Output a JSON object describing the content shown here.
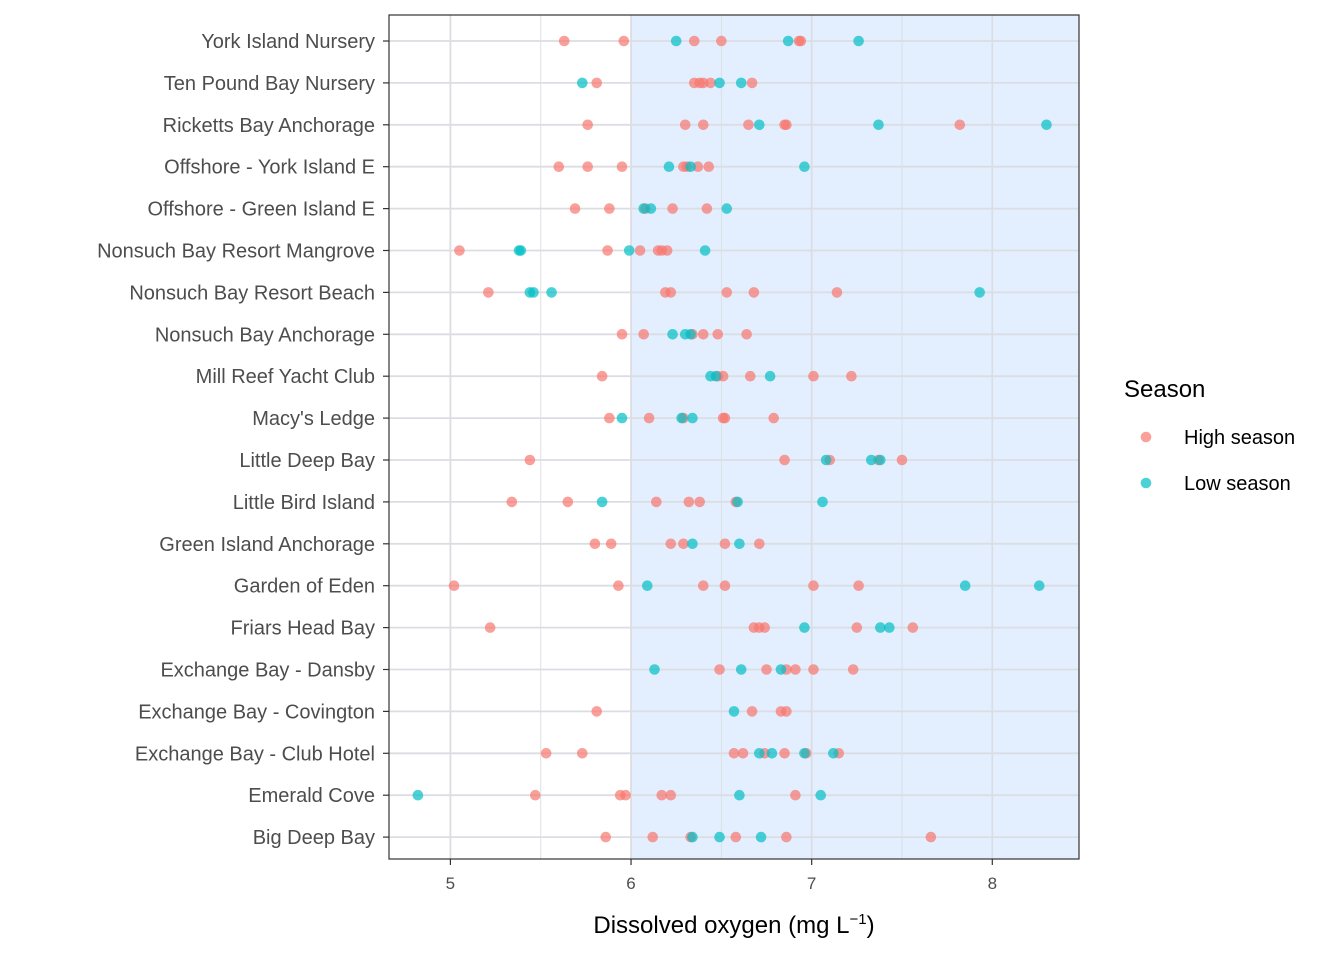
{
  "chart_data": {
    "type": "scatter",
    "xlabel": "Dissolved oxygen (mg L",
    "xlabel_superscript": "−1",
    "xlabel_suffix": ")",
    "xlim": [
      4.66,
      8.48
    ],
    "xticks": [
      5,
      6,
      7,
      8
    ],
    "shaded_region": {
      "from": 6,
      "to": 8.48,
      "color": "#e3efff"
    },
    "grid": true,
    "legend": {
      "title": "Season",
      "placement": "right",
      "entries": [
        {
          "label": "High season",
          "color": "#f8766d"
        },
        {
          "label": "Low season",
          "color": "#00bfc4"
        }
      ]
    },
    "categories": [
      "York Island Nursery",
      "Ten Pound Bay Nursery",
      "Ricketts Bay Anchorage",
      "Offshore - York Island E",
      "Offshore - Green Island E",
      "Nonsuch Bay Resort Mangrove",
      "Nonsuch Bay Resort Beach",
      "Nonsuch Bay Anchorage",
      "Mill Reef Yacht Club",
      "Macy's Ledge",
      "Little Deep Bay",
      "Little Bird Island",
      "Green Island Anchorage",
      "Garden of Eden",
      "Friars Head Bay",
      "Exchange Bay - Dansby",
      "Exchange Bay - Covington",
      "Exchange Bay - Club Hotel",
      "Emerald Cove",
      "Big Deep Bay"
    ],
    "series": [
      {
        "name": "High season",
        "color": "#f8766d",
        "points": [
          [
            "York Island Nursery",
            5.63
          ],
          [
            "York Island Nursery",
            5.96
          ],
          [
            "York Island Nursery",
            6.35
          ],
          [
            "York Island Nursery",
            6.5
          ],
          [
            "York Island Nursery",
            6.93
          ],
          [
            "York Island Nursery",
            6.94
          ],
          [
            "Ten Pound Bay Nursery",
            5.81
          ],
          [
            "Ten Pound Bay Nursery",
            6.35
          ],
          [
            "Ten Pound Bay Nursery",
            6.38
          ],
          [
            "Ten Pound Bay Nursery",
            6.4
          ],
          [
            "Ten Pound Bay Nursery",
            6.44
          ],
          [
            "Ten Pound Bay Nursery",
            6.67
          ],
          [
            "Ricketts Bay Anchorage",
            5.76
          ],
          [
            "Ricketts Bay Anchorage",
            6.3
          ],
          [
            "Ricketts Bay Anchorage",
            6.4
          ],
          [
            "Ricketts Bay Anchorage",
            6.65
          ],
          [
            "Ricketts Bay Anchorage",
            6.85
          ],
          [
            "Ricketts Bay Anchorage",
            6.86
          ],
          [
            "Ricketts Bay Anchorage",
            7.82
          ],
          [
            "Offshore - York Island E",
            5.6
          ],
          [
            "Offshore - York Island E",
            5.76
          ],
          [
            "Offshore - York Island E",
            5.95
          ],
          [
            "Offshore - York Island E",
            6.29
          ],
          [
            "Offshore - York Island E",
            6.31
          ],
          [
            "Offshore - York Island E",
            6.37
          ],
          [
            "Offshore - York Island E",
            6.43
          ],
          [
            "Offshore - Green Island E",
            5.69
          ],
          [
            "Offshore - Green Island E",
            5.88
          ],
          [
            "Offshore - Green Island E",
            6.08
          ],
          [
            "Offshore - Green Island E",
            6.23
          ],
          [
            "Offshore - Green Island E",
            6.42
          ],
          [
            "Nonsuch Bay Resort Mangrove",
            5.05
          ],
          [
            "Nonsuch Bay Resort Mangrove",
            5.87
          ],
          [
            "Nonsuch Bay Resort Mangrove",
            6.05
          ],
          [
            "Nonsuch Bay Resort Mangrove",
            6.15
          ],
          [
            "Nonsuch Bay Resort Mangrove",
            6.17
          ],
          [
            "Nonsuch Bay Resort Mangrove",
            6.2
          ],
          [
            "Nonsuch Bay Resort Beach",
            5.21
          ],
          [
            "Nonsuch Bay Resort Beach",
            6.19
          ],
          [
            "Nonsuch Bay Resort Beach",
            6.22
          ],
          [
            "Nonsuch Bay Resort Beach",
            6.53
          ],
          [
            "Nonsuch Bay Resort Beach",
            6.68
          ],
          [
            "Nonsuch Bay Resort Beach",
            7.14
          ],
          [
            "Nonsuch Bay Anchorage",
            5.95
          ],
          [
            "Nonsuch Bay Anchorage",
            6.07
          ],
          [
            "Nonsuch Bay Anchorage",
            6.34
          ],
          [
            "Nonsuch Bay Anchorage",
            6.4
          ],
          [
            "Nonsuch Bay Anchorage",
            6.48
          ],
          [
            "Nonsuch Bay Anchorage",
            6.64
          ],
          [
            "Mill Reef Yacht Club",
            5.84
          ],
          [
            "Mill Reef Yacht Club",
            6.48
          ],
          [
            "Mill Reef Yacht Club",
            6.51
          ],
          [
            "Mill Reef Yacht Club",
            6.66
          ],
          [
            "Mill Reef Yacht Club",
            7.01
          ],
          [
            "Mill Reef Yacht Club",
            7.22
          ],
          [
            "Macy's Ledge",
            5.88
          ],
          [
            "Macy's Ledge",
            6.1
          ],
          [
            "Macy's Ledge",
            6.29
          ],
          [
            "Macy's Ledge",
            6.51
          ],
          [
            "Macy's Ledge",
            6.52
          ],
          [
            "Macy's Ledge",
            6.79
          ],
          [
            "Little Deep Bay",
            5.44
          ],
          [
            "Little Deep Bay",
            6.85
          ],
          [
            "Little Deep Bay",
            7.1
          ],
          [
            "Little Deep Bay",
            7.37
          ],
          [
            "Little Deep Bay",
            7.5
          ],
          [
            "Little Bird Island",
            5.34
          ],
          [
            "Little Bird Island",
            5.65
          ],
          [
            "Little Bird Island",
            6.14
          ],
          [
            "Little Bird Island",
            6.32
          ],
          [
            "Little Bird Island",
            6.38
          ],
          [
            "Little Bird Island",
            6.58
          ],
          [
            "Green Island Anchorage",
            5.8
          ],
          [
            "Green Island Anchorage",
            5.89
          ],
          [
            "Green Island Anchorage",
            6.22
          ],
          [
            "Green Island Anchorage",
            6.29
          ],
          [
            "Green Island Anchorage",
            6.52
          ],
          [
            "Green Island Anchorage",
            6.71
          ],
          [
            "Garden of Eden",
            5.02
          ],
          [
            "Garden of Eden",
            5.93
          ],
          [
            "Garden of Eden",
            6.4
          ],
          [
            "Garden of Eden",
            6.52
          ],
          [
            "Garden of Eden",
            7.01
          ],
          [
            "Garden of Eden",
            7.26
          ],
          [
            "Friars Head Bay",
            5.22
          ],
          [
            "Friars Head Bay",
            6.68
          ],
          [
            "Friars Head Bay",
            6.71
          ],
          [
            "Friars Head Bay",
            6.74
          ],
          [
            "Friars Head Bay",
            7.25
          ],
          [
            "Friars Head Bay",
            7.56
          ],
          [
            "Exchange Bay - Dansby",
            6.49
          ],
          [
            "Exchange Bay - Dansby",
            6.75
          ],
          [
            "Exchange Bay - Dansby",
            6.86
          ],
          [
            "Exchange Bay - Dansby",
            6.91
          ],
          [
            "Exchange Bay - Dansby",
            7.01
          ],
          [
            "Exchange Bay - Dansby",
            7.23
          ],
          [
            "Exchange Bay - Covington",
            5.81
          ],
          [
            "Exchange Bay - Covington",
            6.67
          ],
          [
            "Exchange Bay - Covington",
            6.83
          ],
          [
            "Exchange Bay - Covington",
            6.86
          ],
          [
            "Exchange Bay - Club Hotel",
            5.53
          ],
          [
            "Exchange Bay - Club Hotel",
            5.73
          ],
          [
            "Exchange Bay - Club Hotel",
            6.57
          ],
          [
            "Exchange Bay - Club Hotel",
            6.62
          ],
          [
            "Exchange Bay - Club Hotel",
            6.74
          ],
          [
            "Exchange Bay - Club Hotel",
            6.85
          ],
          [
            "Exchange Bay - Club Hotel",
            6.97
          ],
          [
            "Exchange Bay - Club Hotel",
            7.15
          ],
          [
            "Emerald Cove",
            5.47
          ],
          [
            "Emerald Cove",
            5.94
          ],
          [
            "Emerald Cove",
            5.97
          ],
          [
            "Emerald Cove",
            6.17
          ],
          [
            "Emerald Cove",
            6.22
          ],
          [
            "Emerald Cove",
            6.91
          ],
          [
            "Big Deep Bay",
            5.86
          ],
          [
            "Big Deep Bay",
            6.12
          ],
          [
            "Big Deep Bay",
            6.33
          ],
          [
            "Big Deep Bay",
            6.58
          ],
          [
            "Big Deep Bay",
            6.86
          ],
          [
            "Big Deep Bay",
            7.66
          ]
        ]
      },
      {
        "name": "Low season",
        "color": "#00bfc4",
        "points": [
          [
            "York Island Nursery",
            6.25
          ],
          [
            "York Island Nursery",
            6.87
          ],
          [
            "York Island Nursery",
            7.26
          ],
          [
            "Ten Pound Bay Nursery",
            5.73
          ],
          [
            "Ten Pound Bay Nursery",
            6.49
          ],
          [
            "Ten Pound Bay Nursery",
            6.61
          ],
          [
            "Ricketts Bay Anchorage",
            6.71
          ],
          [
            "Ricketts Bay Anchorage",
            7.37
          ],
          [
            "Ricketts Bay Anchorage",
            8.3
          ],
          [
            "Offshore - York Island E",
            6.21
          ],
          [
            "Offshore - York Island E",
            6.33
          ],
          [
            "Offshore - York Island E",
            6.96
          ],
          [
            "Offshore - Green Island E",
            6.07
          ],
          [
            "Offshore - Green Island E",
            6.11
          ],
          [
            "Offshore - Green Island E",
            6.53
          ],
          [
            "Nonsuch Bay Resort Mangrove",
            5.38
          ],
          [
            "Nonsuch Bay Resort Mangrove",
            5.39
          ],
          [
            "Nonsuch Bay Resort Mangrove",
            5.99
          ],
          [
            "Nonsuch Bay Resort Mangrove",
            6.41
          ],
          [
            "Nonsuch Bay Resort Beach",
            5.44
          ],
          [
            "Nonsuch Bay Resort Beach",
            5.46
          ],
          [
            "Nonsuch Bay Resort Beach",
            5.56
          ],
          [
            "Nonsuch Bay Resort Beach",
            7.93
          ],
          [
            "Nonsuch Bay Anchorage",
            6.23
          ],
          [
            "Nonsuch Bay Anchorage",
            6.3
          ],
          [
            "Nonsuch Bay Anchorage",
            6.33
          ],
          [
            "Mill Reef Yacht Club",
            6.44
          ],
          [
            "Mill Reef Yacht Club",
            6.47
          ],
          [
            "Mill Reef Yacht Club",
            6.77
          ],
          [
            "Macy's Ledge",
            5.95
          ],
          [
            "Macy's Ledge",
            6.28
          ],
          [
            "Macy's Ledge",
            6.34
          ],
          [
            "Little Deep Bay",
            7.08
          ],
          [
            "Little Deep Bay",
            7.33
          ],
          [
            "Little Deep Bay",
            7.38
          ],
          [
            "Little Bird Island",
            5.84
          ],
          [
            "Little Bird Island",
            6.59
          ],
          [
            "Little Bird Island",
            7.06
          ],
          [
            "Green Island Anchorage",
            6.34
          ],
          [
            "Green Island Anchorage",
            6.6
          ],
          [
            "Garden of Eden",
            6.09
          ],
          [
            "Garden of Eden",
            7.85
          ],
          [
            "Garden of Eden",
            8.26
          ],
          [
            "Friars Head Bay",
            6.96
          ],
          [
            "Friars Head Bay",
            7.38
          ],
          [
            "Friars Head Bay",
            7.43
          ],
          [
            "Exchange Bay - Dansby",
            6.13
          ],
          [
            "Exchange Bay - Dansby",
            6.61
          ],
          [
            "Exchange Bay - Dansby",
            6.83
          ],
          [
            "Exchange Bay - Covington",
            6.57
          ],
          [
            "Exchange Bay - Club Hotel",
            6.71
          ],
          [
            "Exchange Bay - Club Hotel",
            6.78
          ],
          [
            "Exchange Bay - Club Hotel",
            6.96
          ],
          [
            "Exchange Bay - Club Hotel",
            7.12
          ],
          [
            "Emerald Cove",
            4.82
          ],
          [
            "Emerald Cove",
            6.6
          ],
          [
            "Emerald Cove",
            7.05
          ],
          [
            "Big Deep Bay",
            6.34
          ],
          [
            "Big Deep Bay",
            6.49
          ],
          [
            "Big Deep Bay",
            6.72
          ]
        ]
      }
    ]
  }
}
